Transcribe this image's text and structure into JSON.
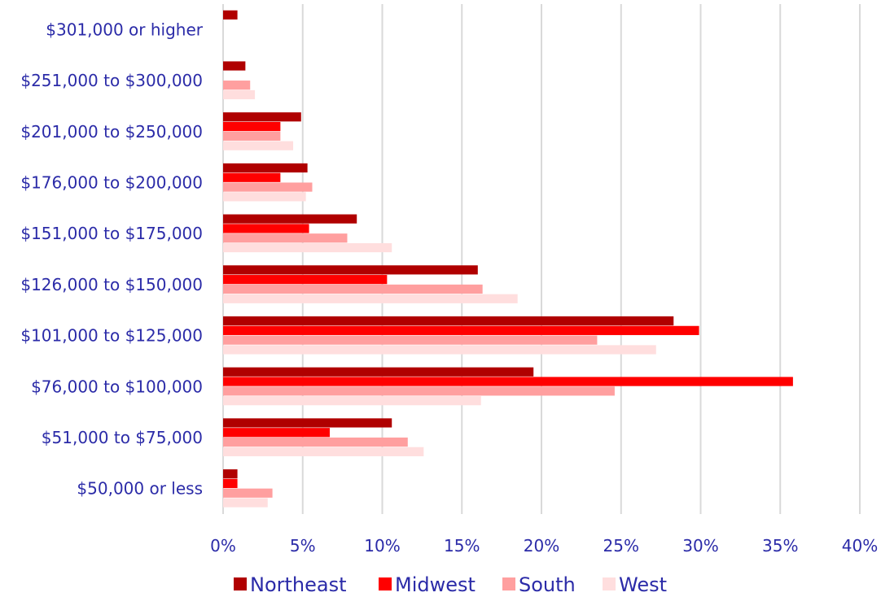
{
  "chart_data": {
    "type": "bar",
    "orientation": "horizontal",
    "categories": [
      "$50,000 or less",
      "$51,000 to $75,000",
      "$76,000 to $100,000",
      "$101,000 to $125,000",
      "$126,000 to $150,000",
      "$151,000 to $175,000",
      "$176,000 to $200,000",
      "$201,000 to $250,000",
      "$251,000 to $300,000",
      "$301,000 or higher"
    ],
    "series": [
      {
        "name": "Northeast",
        "color": "#b00000",
        "values": [
          0.9,
          10.6,
          19.5,
          28.3,
          16.0,
          8.4,
          5.3,
          4.9,
          1.4,
          0.9
        ]
      },
      {
        "name": "Midwest",
        "color": "#ff0000",
        "values": [
          0.9,
          6.7,
          35.8,
          29.9,
          10.3,
          5.4,
          3.6,
          3.6,
          0.0,
          0.0
        ]
      },
      {
        "name": "South",
        "color": "#ff9f9f",
        "values": [
          3.1,
          11.6,
          24.6,
          23.5,
          16.3,
          7.8,
          5.6,
          3.6,
          1.7,
          0.0
        ]
      },
      {
        "name": "West",
        "color": "#ffdede",
        "values": [
          2.8,
          12.6,
          16.2,
          27.2,
          18.5,
          10.6,
          5.2,
          4.4,
          2.0,
          0.0
        ]
      }
    ],
    "xlim": [
      0,
      40
    ],
    "x_ticks": [
      "0%",
      "5%",
      "10%",
      "15%",
      "20%",
      "25%",
      "30%",
      "35%",
      "40%"
    ],
    "grid": true,
    "legend_position": "bottom",
    "title": "",
    "xlabel": "",
    "ylabel": ""
  }
}
